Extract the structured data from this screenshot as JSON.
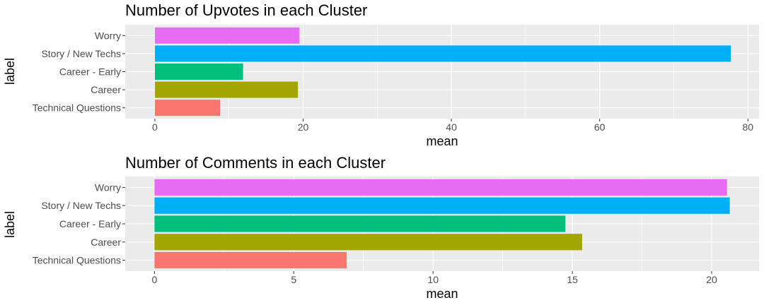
{
  "chart_data": [
    {
      "type": "bar",
      "orientation": "horizontal",
      "title": "Number of Upvotes in each Cluster",
      "xlabel": "mean",
      "ylabel": "label",
      "categories": [
        "Technical Questions",
        "Career",
        "Career - Early",
        "Story / New Techs",
        "Worry"
      ],
      "values": [
        8.8,
        19.3,
        11.9,
        77.7,
        19.5
      ],
      "colors": [
        "#F8766D",
        "#A3A500",
        "#00BF7D",
        "#00B0F6",
        "#E76BF3"
      ],
      "xlim": [
        -4,
        81.5
      ],
      "xticks": [
        0,
        20,
        40,
        60,
        80
      ],
      "xticks_minor": [
        10,
        30,
        50,
        70
      ],
      "xtick_labels": [
        "0",
        "20",
        "40",
        "60",
        "80"
      ],
      "grid": true
    },
    {
      "type": "bar",
      "orientation": "horizontal",
      "title": "Number of Comments in each Cluster",
      "xlabel": "mean",
      "ylabel": "label",
      "categories": [
        "Technical Questions",
        "Career",
        "Career - Early",
        "Story / New Techs",
        "Worry"
      ],
      "values": [
        6.9,
        15.35,
        14.75,
        20.65,
        20.55
      ],
      "colors": [
        "#F8766D",
        "#A3A500",
        "#00BF7D",
        "#00B0F6",
        "#E76BF3"
      ],
      "xlim": [
        -1.05,
        21.7
      ],
      "xticks": [
        0,
        5,
        10,
        15,
        20
      ],
      "xticks_minor": [
        2.5,
        7.5,
        12.5,
        17.5
      ],
      "xtick_labels": [
        "0",
        "5",
        "10",
        "15",
        "20"
      ],
      "grid": true
    }
  ],
  "colors": {
    "panel_background": "#EBEBEB",
    "grid": "#FFFFFF",
    "tick_text": "#4D4D4D"
  }
}
